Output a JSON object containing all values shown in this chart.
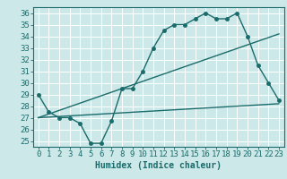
{
  "title": "",
  "xlabel": "Humidex (Indice chaleur)",
  "ylabel": "",
  "bg_color": "#cde8e8",
  "line_color": "#1a6b6b",
  "grid_color": "#b8d8d8",
  "xlim": [
    -0.5,
    23.5
  ],
  "ylim": [
    24.5,
    36.5
  ],
  "xticks": [
    0,
    1,
    2,
    3,
    4,
    5,
    6,
    7,
    8,
    9,
    10,
    11,
    12,
    13,
    14,
    15,
    16,
    17,
    18,
    19,
    20,
    21,
    22,
    23
  ],
  "yticks": [
    25,
    26,
    27,
    28,
    29,
    30,
    31,
    32,
    33,
    34,
    35,
    36
  ],
  "line1_x": [
    0,
    1,
    2,
    3,
    4,
    5,
    6,
    7,
    8,
    9,
    10,
    11,
    12,
    13,
    14,
    15,
    16,
    17,
    18,
    19,
    20,
    21,
    22,
    23
  ],
  "line1_y": [
    29,
    27.5,
    27,
    27,
    26.5,
    24.8,
    24.8,
    26.7,
    29.5,
    29.5,
    31,
    33,
    34.5,
    35,
    35,
    35.5,
    36,
    35.5,
    35.5,
    36,
    34,
    31.5,
    30,
    28.5
  ],
  "line2_x": [
    0,
    23
  ],
  "line2_y": [
    27,
    28.2
  ],
  "line3_x": [
    0,
    23
  ],
  "line3_y": [
    27,
    34.2
  ],
  "marker_size": 2.5,
  "linewidth": 1.0,
  "font_size": 6.5
}
